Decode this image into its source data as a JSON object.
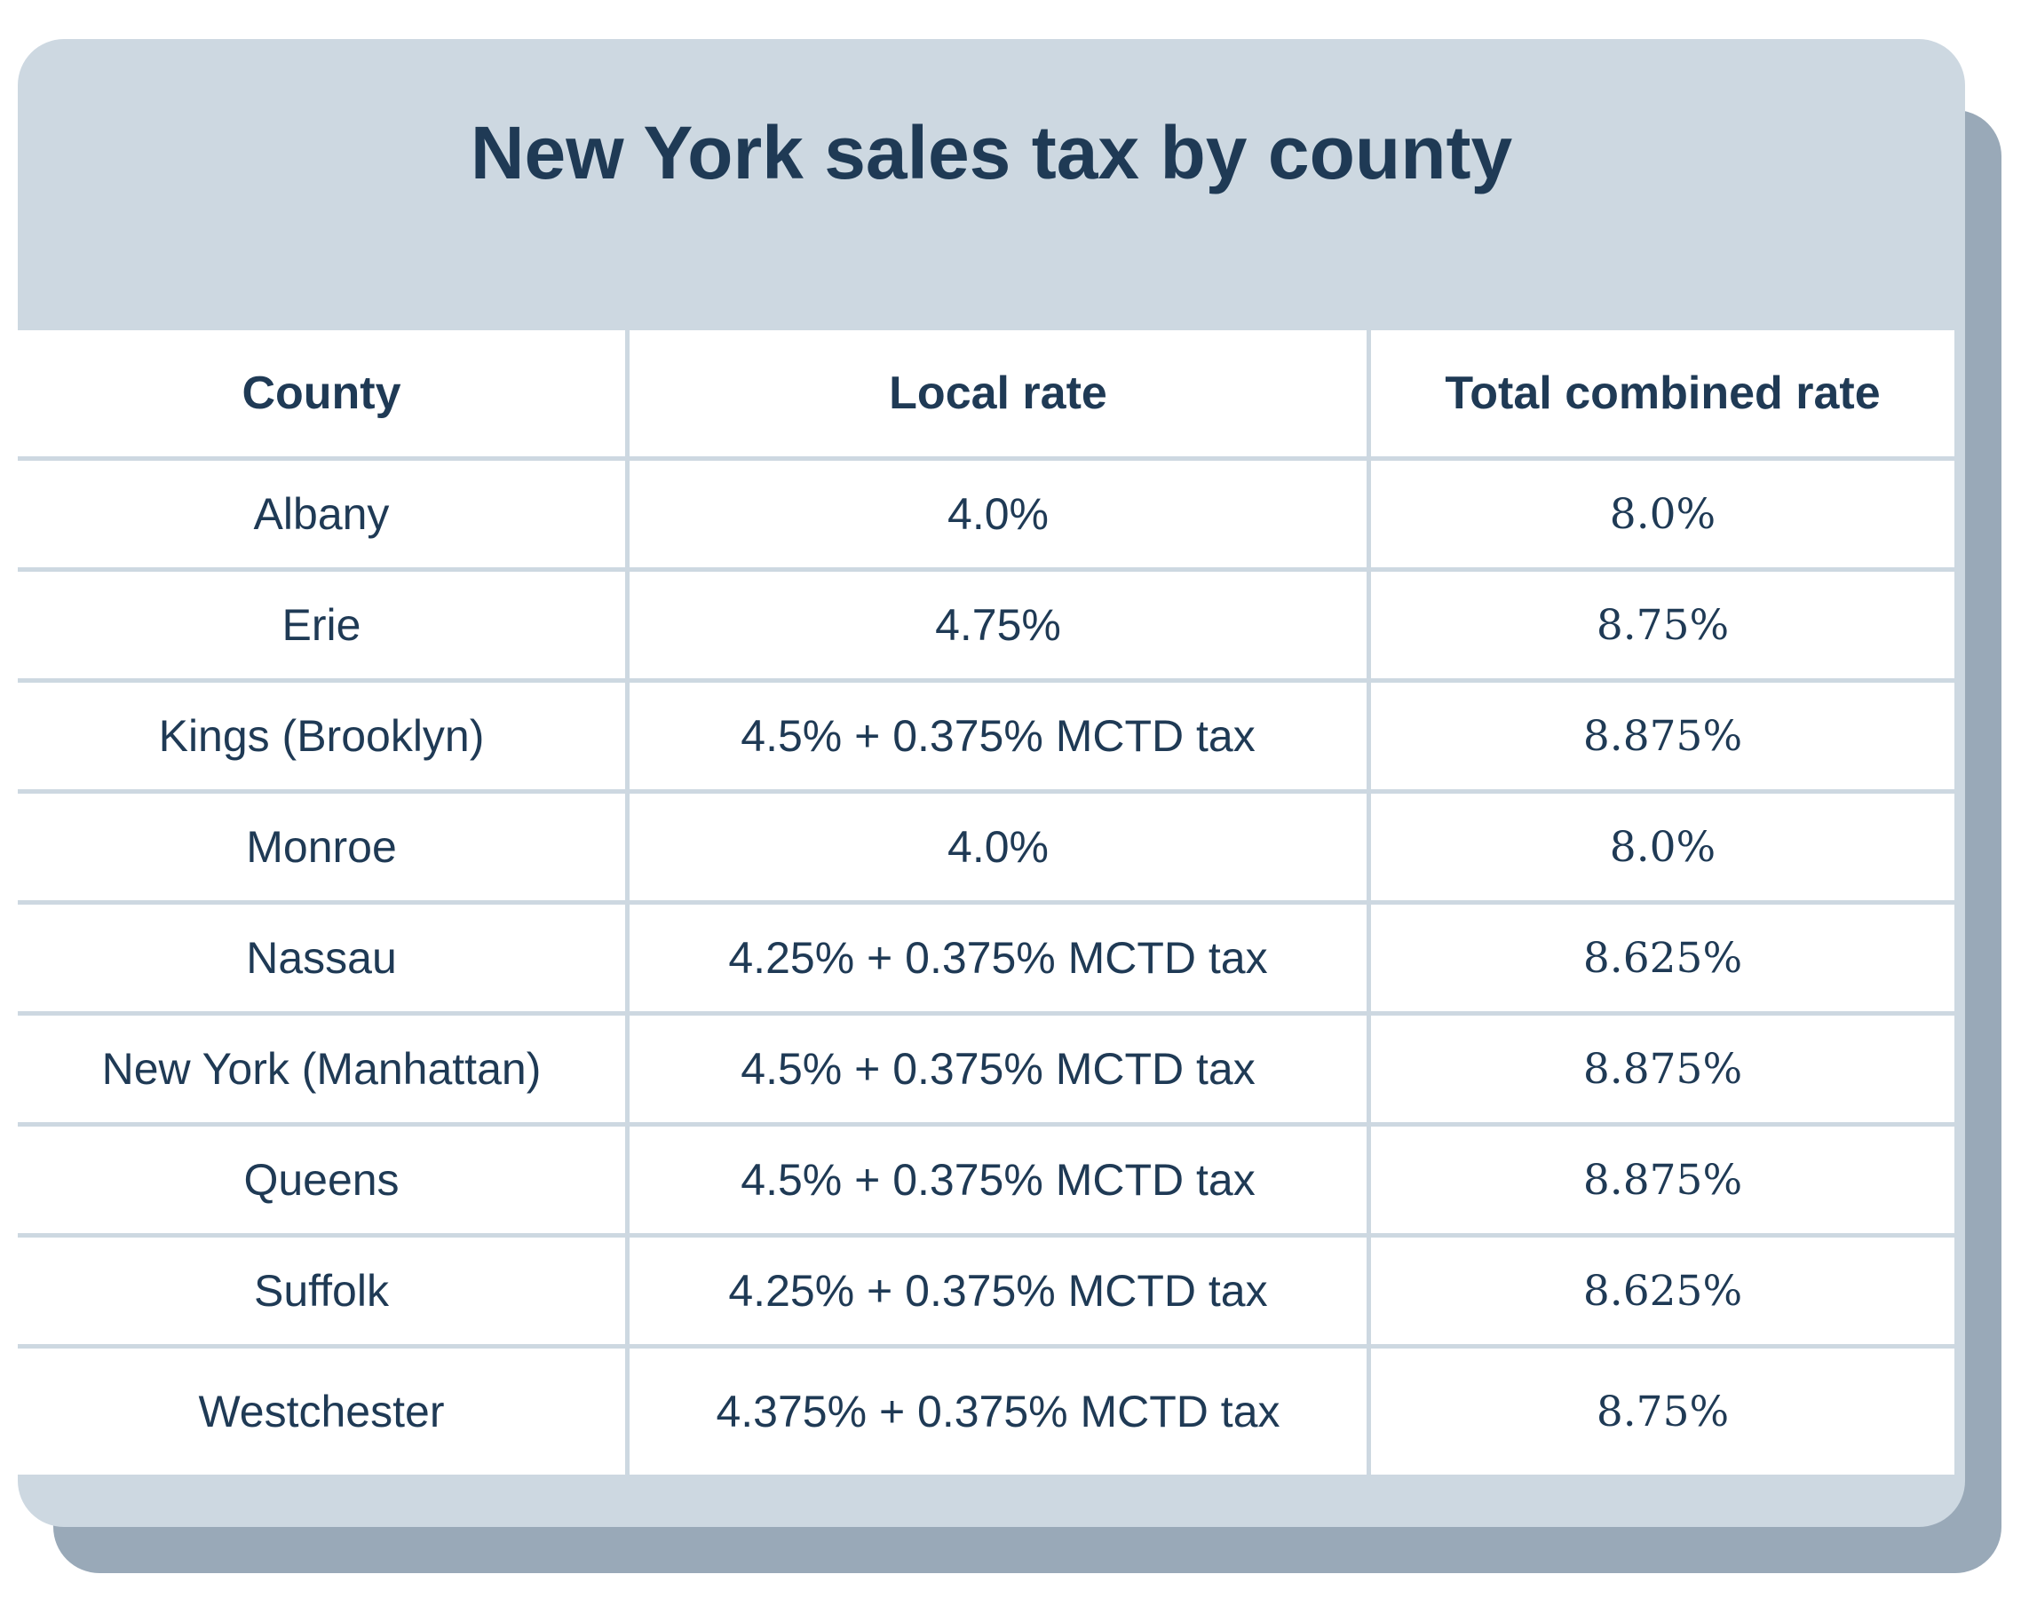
{
  "title": "New York sales tax by county",
  "colors": {
    "header_band": "#cdd8e1",
    "shadow": "#99a9b8",
    "text": "#1f3a55"
  },
  "table": {
    "headers": [
      "County",
      "Local rate",
      "Total combined rate"
    ],
    "rows": [
      [
        "Albany",
        "4.0%",
        "8.0%"
      ],
      [
        "Erie",
        "4.75%",
        "8.75%"
      ],
      [
        "Kings (Brooklyn)",
        "4.5% + 0.375% MCTD tax",
        "8.875%"
      ],
      [
        "Monroe",
        "4.0%",
        "8.0%"
      ],
      [
        "Nassau",
        "4.25% + 0.375% MCTD tax",
        "8.625%"
      ],
      [
        "New York (Manhattan)",
        "4.5% + 0.375% MCTD tax",
        "8.875%"
      ],
      [
        "Queens",
        "4.5% + 0.375% MCTD tax",
        "8.875%"
      ],
      [
        "Suffolk",
        "4.25% + 0.375% MCTD tax",
        "8.625%"
      ],
      [
        "Westchester",
        "4.375% + 0.375% MCTD tax",
        "8.75%"
      ]
    ]
  }
}
